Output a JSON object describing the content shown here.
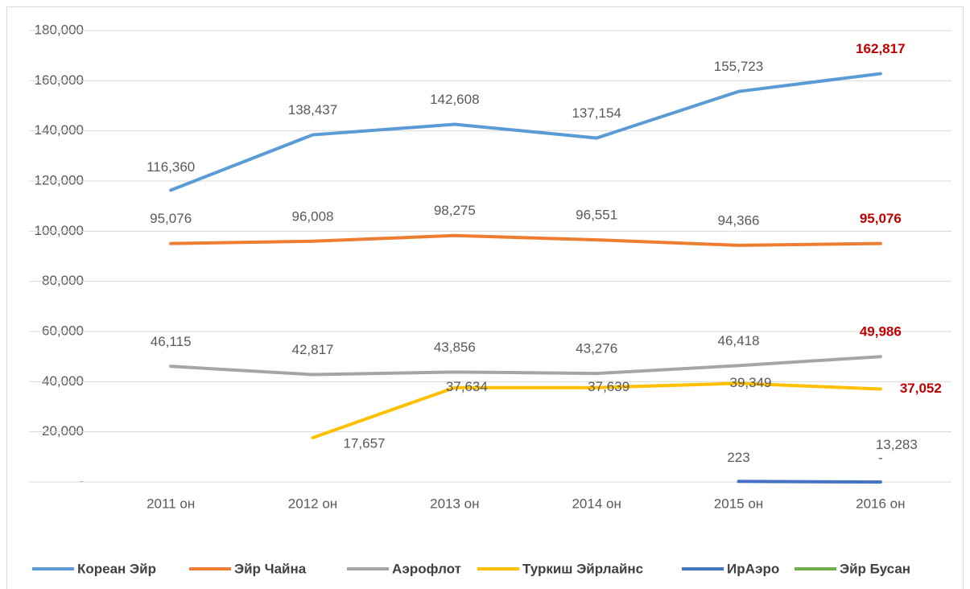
{
  "chart_data": {
    "type": "line",
    "categories": [
      "2011 он",
      "2012 он",
      "2013 он",
      "2014 он",
      "2015 он",
      "2016 он"
    ],
    "ylim": [
      0,
      180000
    ],
    "yticks": [
      {
        "value": 0,
        "label": "-"
      },
      {
        "value": 20000,
        "label": "20,000"
      },
      {
        "value": 40000,
        "label": "40,000"
      },
      {
        "value": 60000,
        "label": "60,000"
      },
      {
        "value": 80000,
        "label": "80,000"
      },
      {
        "value": 100000,
        "label": "100,000"
      },
      {
        "value": 120000,
        "label": "120,000"
      },
      {
        "value": 140000,
        "label": "140,000"
      },
      {
        "value": 160000,
        "label": "160,000"
      },
      {
        "value": 180000,
        "label": "180,000"
      }
    ],
    "grid": true,
    "legend": "bottom",
    "highlight_color": "#c00000",
    "series": [
      {
        "name": "Кореан Эйр",
        "color": "#5b9bd5",
        "values": [
          116360,
          138437,
          142608,
          137154,
          155723,
          162817
        ],
        "value_labels": [
          "116,360",
          "138,437",
          "142,608",
          "137,154",
          "155,723",
          "162,817"
        ]
      },
      {
        "name": "Эйр Чайна",
        "color": "#ed7d31",
        "values": [
          95076,
          96008,
          98275,
          96551,
          94366,
          95076
        ],
        "value_labels": [
          "95,076",
          "96,008",
          "98,275",
          "96,551",
          "94,366",
          "95,076"
        ]
      },
      {
        "name": "Аэрофлот",
        "color": "#a5a5a5",
        "values": [
          46115,
          42817,
          43856,
          43276,
          46418,
          49986
        ],
        "value_labels": [
          "46,115",
          "42,817",
          "43,856",
          "43,276",
          "46,418",
          "49,986"
        ]
      },
      {
        "name": "Туркиш Эйрлайнс",
        "color": "#ffc000",
        "values": [
          null,
          17657,
          37634,
          37639,
          39349,
          37052
        ],
        "value_labels": [
          null,
          "17,657",
          "37,634",
          "37,639",
          "39,349",
          "37,052"
        ]
      },
      {
        "name": "ИрАэро",
        "color": "#4472c4",
        "values": [
          null,
          null,
          null,
          null,
          223,
          0
        ],
        "value_labels": [
          null,
          null,
          null,
          null,
          "223",
          "-"
        ]
      },
      {
        "name": "Эйр Бусан",
        "color": "#70ad47",
        "values": [
          null,
          null,
          null,
          null,
          null,
          13283
        ],
        "value_labels": [
          null,
          null,
          null,
          null,
          null,
          "13,283"
        ]
      }
    ]
  }
}
